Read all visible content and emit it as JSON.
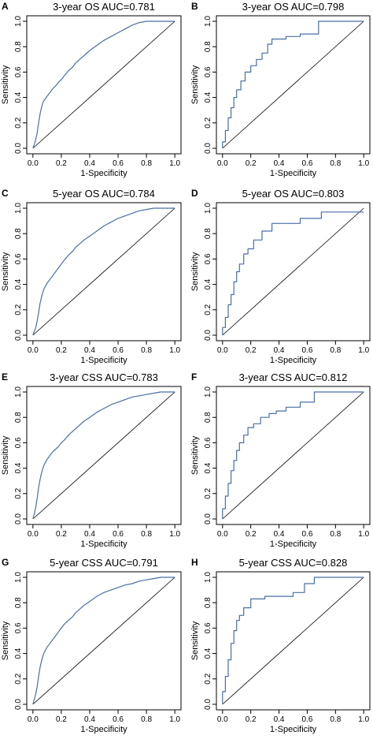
{
  "chart_data": [
    {
      "panel": "A",
      "type": "line",
      "title": "3-year OS AUC=0.781",
      "xlabel": "1-Specificity",
      "ylabel": "Sensitivity",
      "xlim": [
        0,
        1
      ],
      "ylim": [
        0,
        1
      ],
      "xticks": [
        "0.0",
        "0.2",
        "0.4",
        "0.6",
        "0.8",
        "1.0"
      ],
      "yticks": [
        "0.0",
        "0.2",
        "0.4",
        "0.6",
        "0.8",
        "1.0"
      ],
      "line_color": "#4a6fa5",
      "series": [
        {
          "x": [
            0,
            0.01,
            0.02,
            0.03,
            0.04,
            0.05,
            0.06,
            0.07,
            0.08,
            0.1,
            0.12,
            0.14,
            0.16,
            0.18,
            0.2,
            0.22,
            0.25,
            0.28,
            0.3,
            0.33,
            0.36,
            0.4,
            0.45,
            0.5,
            0.55,
            0.6,
            0.65,
            0.7,
            0.75,
            0.8,
            0.85,
            0.9,
            0.95,
            1.0
          ],
          "y": [
            0,
            0.03,
            0.07,
            0.12,
            0.2,
            0.27,
            0.32,
            0.36,
            0.38,
            0.41,
            0.44,
            0.47,
            0.49,
            0.52,
            0.54,
            0.57,
            0.61,
            0.64,
            0.67,
            0.7,
            0.73,
            0.77,
            0.81,
            0.85,
            0.88,
            0.91,
            0.94,
            0.97,
            0.99,
            1.0,
            1.0,
            1.0,
            1.0,
            1.0
          ]
        }
      ]
    },
    {
      "panel": "B",
      "type": "line",
      "title": "3-year OS AUC=0.798",
      "xlabel": "1-Specificity",
      "ylabel": "Sensitivity",
      "xlim": [
        0,
        1
      ],
      "ylim": [
        0,
        1
      ],
      "xticks": [
        "0.0",
        "0.2",
        "0.4",
        "0.6",
        "0.8",
        "1.0"
      ],
      "yticks": [
        "0.0",
        "0.2",
        "0.4",
        "0.6",
        "0.8",
        "1.0"
      ],
      "line_color": "#4a6fa5",
      "series": [
        {
          "x": [
            0,
            0,
            0.02,
            0.02,
            0.04,
            0.04,
            0.06,
            0.06,
            0.08,
            0.08,
            0.1,
            0.1,
            0.13,
            0.13,
            0.16,
            0.16,
            0.2,
            0.2,
            0.24,
            0.24,
            0.28,
            0.28,
            0.32,
            0.32,
            0.35,
            0.35,
            0.45,
            0.45,
            0.55,
            0.55,
            0.68,
            0.68,
            1.0
          ],
          "y": [
            0,
            0.05,
            0.05,
            0.14,
            0.14,
            0.24,
            0.24,
            0.32,
            0.32,
            0.4,
            0.4,
            0.46,
            0.46,
            0.53,
            0.53,
            0.6,
            0.6,
            0.65,
            0.65,
            0.7,
            0.7,
            0.75,
            0.75,
            0.82,
            0.82,
            0.86,
            0.86,
            0.88,
            0.88,
            0.9,
            0.9,
            1.0,
            1.0
          ]
        }
      ]
    },
    {
      "panel": "C",
      "type": "line",
      "title": "5-year OS AUC=0.784",
      "xlabel": "1-Specificity",
      "ylabel": "Sensitivity",
      "xlim": [
        0,
        1
      ],
      "ylim": [
        0,
        1
      ],
      "xticks": [
        "0.0",
        "0.2",
        "0.4",
        "0.6",
        "0.8",
        "1.0"
      ],
      "yticks": [
        "0.0",
        "0.2",
        "0.4",
        "0.6",
        "0.8",
        "1.0"
      ],
      "line_color": "#4a6fa5",
      "series": [
        {
          "x": [
            0,
            0.01,
            0.02,
            0.03,
            0.04,
            0.05,
            0.06,
            0.07,
            0.08,
            0.1,
            0.12,
            0.14,
            0.16,
            0.18,
            0.2,
            0.22,
            0.25,
            0.28,
            0.3,
            0.33,
            0.36,
            0.4,
            0.45,
            0.5,
            0.55,
            0.6,
            0.65,
            0.7,
            0.75,
            0.8,
            0.85,
            0.9,
            0.95,
            1.0
          ],
          "y": [
            0,
            0.03,
            0.06,
            0.11,
            0.18,
            0.25,
            0.3,
            0.34,
            0.37,
            0.41,
            0.44,
            0.47,
            0.5,
            0.53,
            0.56,
            0.59,
            0.63,
            0.66,
            0.69,
            0.72,
            0.75,
            0.78,
            0.82,
            0.86,
            0.89,
            0.92,
            0.94,
            0.96,
            0.98,
            0.99,
            1.0,
            1.0,
            1.0,
            1.0
          ]
        }
      ]
    },
    {
      "panel": "D",
      "type": "line",
      "title": "5-year OS AUC=0.803",
      "xlabel": "1-Specificity",
      "ylabel": "Sensitivity",
      "xlim": [
        0,
        1
      ],
      "ylim": [
        0,
        1
      ],
      "xticks": [
        "0.0",
        "0.2",
        "0.4",
        "0.6",
        "0.8",
        "1.0"
      ],
      "yticks": [
        "0.0",
        "0.2",
        "0.4",
        "0.6",
        "0.8",
        "1.0"
      ],
      "line_color": "#4a6fa5",
      "series": [
        {
          "x": [
            0,
            0,
            0.02,
            0.02,
            0.04,
            0.04,
            0.06,
            0.06,
            0.08,
            0.08,
            0.1,
            0.1,
            0.12,
            0.12,
            0.15,
            0.15,
            0.18,
            0.18,
            0.22,
            0.22,
            0.28,
            0.28,
            0.35,
            0.35,
            0.55,
            0.55,
            0.7,
            0.7,
            1.0
          ],
          "y": [
            0,
            0.06,
            0.06,
            0.14,
            0.14,
            0.24,
            0.24,
            0.32,
            0.32,
            0.42,
            0.42,
            0.5,
            0.5,
            0.56,
            0.56,
            0.64,
            0.64,
            0.68,
            0.68,
            0.75,
            0.75,
            0.82,
            0.82,
            0.88,
            0.88,
            0.92,
            0.92,
            0.97,
            0.97
          ]
        }
      ]
    },
    {
      "panel": "E",
      "type": "line",
      "title": "3-year CSS AUC=0.783",
      "xlabel": "1-Specificity",
      "ylabel": "Sensitivity",
      "xlim": [
        0,
        1
      ],
      "ylim": [
        0,
        1
      ],
      "xticks": [
        "0.0",
        "0.2",
        "0.4",
        "0.6",
        "0.8",
        "1.0"
      ],
      "yticks": [
        "0.0",
        "0.2",
        "0.4",
        "0.6",
        "0.8",
        "1.0"
      ],
      "line_color": "#4a6fa5",
      "series": [
        {
          "x": [
            0,
            0.01,
            0.02,
            0.03,
            0.04,
            0.05,
            0.06,
            0.07,
            0.08,
            0.1,
            0.12,
            0.14,
            0.16,
            0.18,
            0.2,
            0.22,
            0.25,
            0.28,
            0.3,
            0.33,
            0.36,
            0.4,
            0.45,
            0.5,
            0.55,
            0.6,
            0.65,
            0.7,
            0.75,
            0.8,
            0.85,
            0.9,
            0.95,
            1.0
          ],
          "y": [
            0,
            0.04,
            0.09,
            0.16,
            0.25,
            0.31,
            0.36,
            0.4,
            0.43,
            0.47,
            0.5,
            0.53,
            0.55,
            0.57,
            0.6,
            0.62,
            0.66,
            0.69,
            0.71,
            0.74,
            0.77,
            0.8,
            0.84,
            0.87,
            0.9,
            0.92,
            0.94,
            0.96,
            0.97,
            0.98,
            0.99,
            1.0,
            1.0,
            1.0
          ]
        }
      ]
    },
    {
      "panel": "F",
      "type": "line",
      "title": "3-year CSS AUC=0.812",
      "xlabel": "1-Specificity",
      "ylabel": "Sensitivity",
      "xlim": [
        0,
        1
      ],
      "ylim": [
        0,
        1
      ],
      "xticks": [
        "0.0",
        "0.2",
        "0.4",
        "0.6",
        "0.8",
        "1.0"
      ],
      "yticks": [
        "0.0",
        "0.2",
        "0.4",
        "0.6",
        "0.8",
        "1.0"
      ],
      "line_color": "#4a6fa5",
      "series": [
        {
          "x": [
            0,
            0,
            0.02,
            0.02,
            0.04,
            0.04,
            0.06,
            0.06,
            0.08,
            0.08,
            0.1,
            0.1,
            0.12,
            0.12,
            0.15,
            0.15,
            0.18,
            0.18,
            0.22,
            0.22,
            0.27,
            0.27,
            0.33,
            0.33,
            0.38,
            0.38,
            0.45,
            0.45,
            0.55,
            0.55,
            0.65,
            0.65,
            1.0
          ],
          "y": [
            0,
            0.08,
            0.08,
            0.18,
            0.18,
            0.28,
            0.28,
            0.38,
            0.38,
            0.46,
            0.46,
            0.54,
            0.54,
            0.6,
            0.6,
            0.66,
            0.66,
            0.72,
            0.72,
            0.75,
            0.75,
            0.8,
            0.8,
            0.83,
            0.83,
            0.85,
            0.85,
            0.88,
            0.88,
            0.92,
            0.92,
            1.0,
            1.0
          ]
        }
      ]
    },
    {
      "panel": "G",
      "type": "line",
      "title": "5-year CSS AUC=0.791",
      "xlabel": "1-Specificity",
      "ylabel": "Sensitivity",
      "xlim": [
        0,
        1
      ],
      "ylim": [
        0,
        1
      ],
      "xticks": [
        "0.0",
        "0.2",
        "0.4",
        "0.6",
        "0.8",
        "1.0"
      ],
      "yticks": [
        "0.0",
        "0.2",
        "0.4",
        "0.6",
        "0.8",
        "1.0"
      ],
      "line_color": "#4a6fa5",
      "series": [
        {
          "x": [
            0,
            0.01,
            0.02,
            0.03,
            0.04,
            0.05,
            0.06,
            0.07,
            0.08,
            0.1,
            0.12,
            0.14,
            0.16,
            0.18,
            0.2,
            0.22,
            0.25,
            0.28,
            0.3,
            0.33,
            0.36,
            0.4,
            0.45,
            0.5,
            0.55,
            0.6,
            0.65,
            0.7,
            0.75,
            0.8,
            0.85,
            0.9,
            0.95,
            1.0
          ],
          "y": [
            0,
            0.04,
            0.08,
            0.14,
            0.22,
            0.29,
            0.34,
            0.38,
            0.41,
            0.45,
            0.48,
            0.51,
            0.54,
            0.57,
            0.6,
            0.63,
            0.66,
            0.69,
            0.72,
            0.75,
            0.78,
            0.81,
            0.85,
            0.88,
            0.9,
            0.92,
            0.94,
            0.95,
            0.97,
            0.98,
            0.99,
            1.0,
            1.0,
            1.0
          ]
        }
      ]
    },
    {
      "panel": "H",
      "type": "line",
      "title": "5-year CSS AUC=0.828",
      "xlabel": "1-Specificity",
      "ylabel": "Sensitivity",
      "xlim": [
        0,
        1
      ],
      "ylim": [
        0,
        1
      ],
      "xticks": [
        "0.0",
        "0.2",
        "0.4",
        "0.6",
        "0.8",
        "1.0"
      ],
      "yticks": [
        "0.0",
        "0.2",
        "0.4",
        "0.6",
        "0.8",
        "1.0"
      ],
      "line_color": "#4a6fa5",
      "series": [
        {
          "x": [
            0,
            0,
            0.02,
            0.02,
            0.04,
            0.04,
            0.06,
            0.06,
            0.08,
            0.08,
            0.1,
            0.1,
            0.12,
            0.12,
            0.15,
            0.15,
            0.2,
            0.2,
            0.3,
            0.3,
            0.5,
            0.5,
            0.58,
            0.58,
            0.65,
            0.65,
            1.0
          ],
          "y": [
            0,
            0.1,
            0.1,
            0.22,
            0.22,
            0.35,
            0.35,
            0.48,
            0.48,
            0.58,
            0.58,
            0.66,
            0.66,
            0.7,
            0.7,
            0.76,
            0.76,
            0.83,
            0.83,
            0.85,
            0.85,
            0.88,
            0.88,
            0.95,
            0.95,
            1.0,
            1.0
          ]
        }
      ]
    }
  ]
}
